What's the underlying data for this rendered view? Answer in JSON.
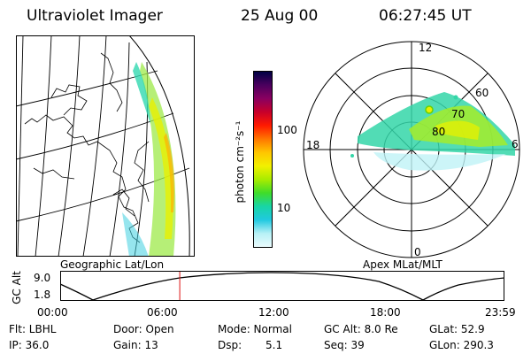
{
  "header": {
    "instrument": "Ultraviolet Imager",
    "date": "25 Aug 00",
    "time": "06:27:45 UT"
  },
  "geo_panel": {
    "caption": "Geographic Lat/Lon"
  },
  "colorbar": {
    "unit_label": "photon cm⁻²s⁻¹",
    "ticks": [
      "100",
      "10"
    ],
    "colors": [
      "#000044",
      "#4b005e",
      "#8a0060",
      "#c8002a",
      "#ff1a00",
      "#ff7700",
      "#ffc600",
      "#f2f000",
      "#a8ec00",
      "#3fdc2a",
      "#18d5a6",
      "#20c9e0",
      "#b7f1f6",
      "#eafbfd"
    ]
  },
  "polar_panel": {
    "caption": "Apex MLat/MLT",
    "mlt_labels": {
      "top": "12",
      "left": "18",
      "right": "6",
      "bottom": "0"
    },
    "lat_labels": [
      "60",
      "70",
      "80"
    ]
  },
  "orbit_plot": {
    "ylabel": "GC Alt",
    "yticks": [
      "9.0",
      "1.8"
    ],
    "xticks": [
      "00:00",
      "06:00",
      "12:00",
      "18:00",
      "23:59"
    ],
    "current_time_hours": 6.46
  },
  "status": {
    "flt": "Flt: LBHL",
    "ip": "IP: 36.0",
    "door": "Door: Open",
    "gain": "Gain: 13",
    "mode": "Mode: Normal",
    "dsp_label": "Dsp:",
    "dsp_value": "5.1",
    "gc_alt": "GC Alt: 8.0 Re",
    "seq": "Seq: 39",
    "glat": "GLat:  52.9",
    "glon": "GLon: 290.3"
  }
}
